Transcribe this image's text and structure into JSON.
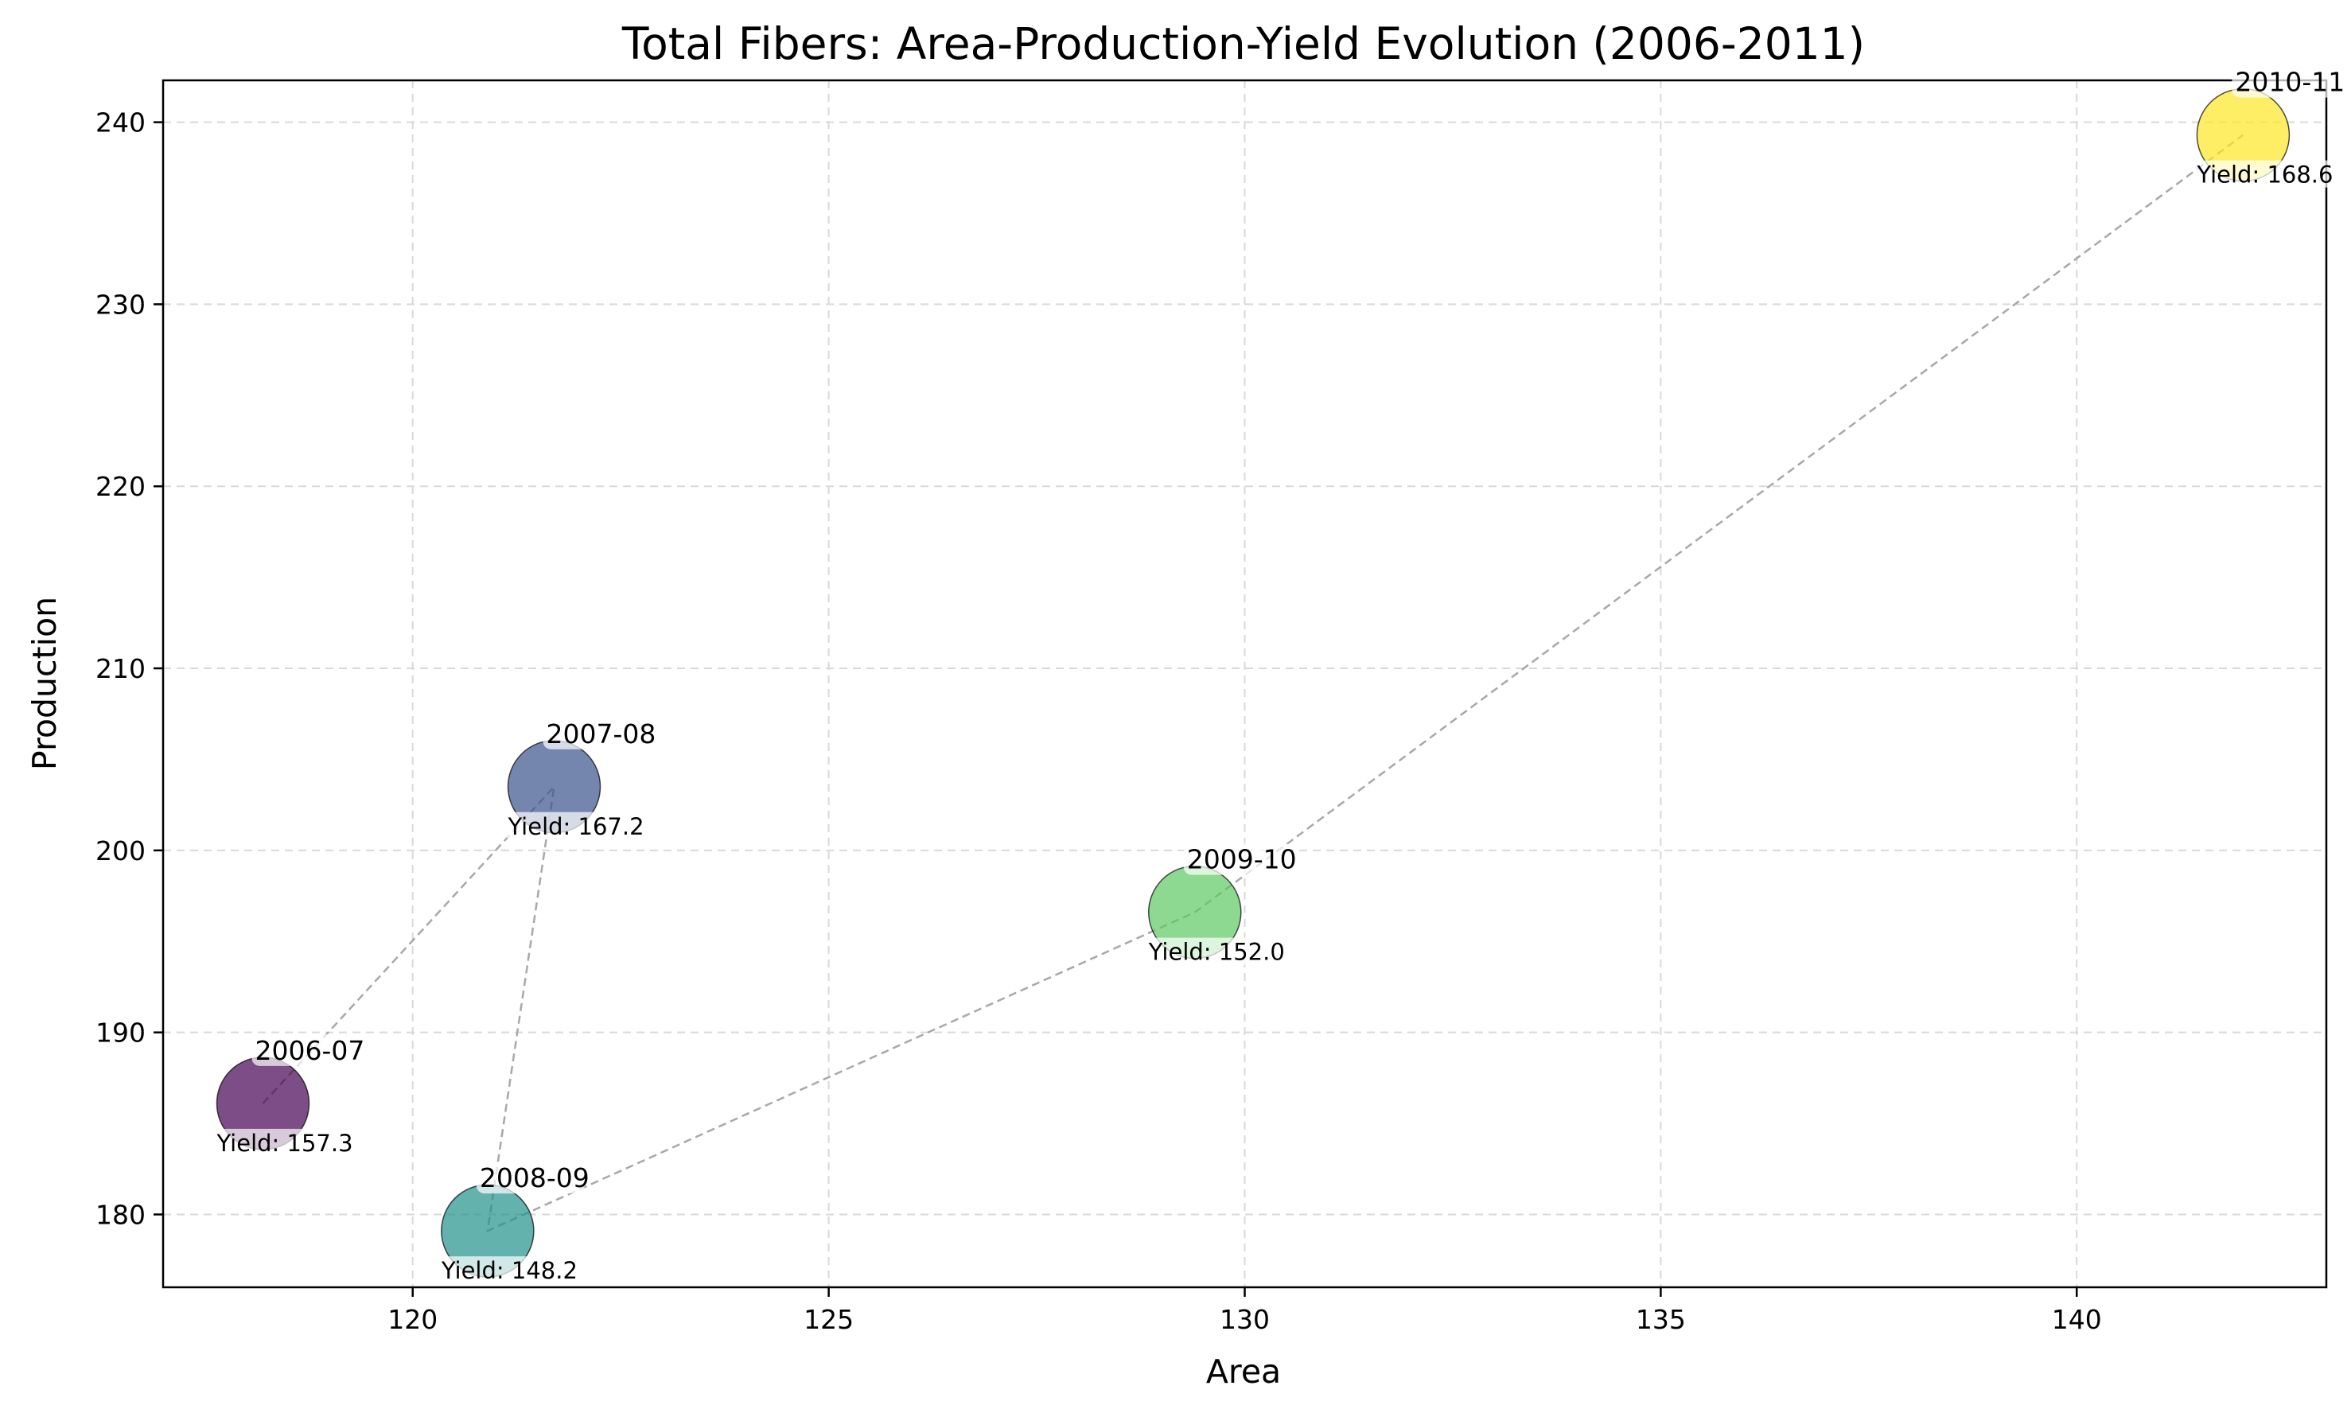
{
  "chart_data": {
    "type": "scatter",
    "title": "Total Fibers: Area-Production-Yield Evolution (2006-2011)",
    "xlabel": "Area",
    "ylabel": "Production",
    "xlim": [
      117.0,
      143.0
    ],
    "ylim": [
      176.0,
      242.3
    ],
    "xticks": [
      120,
      125,
      130,
      135,
      140
    ],
    "yticks": [
      180,
      190,
      200,
      210,
      220,
      230,
      240
    ],
    "grid": true,
    "connect_points": true,
    "points": [
      {
        "label": "2006-07",
        "x": 118.2,
        "y": 186.1,
        "yield_text": "Yield: 157.3",
        "color": "#440154"
      },
      {
        "label": "2007-08",
        "x": 121.7,
        "y": 203.5,
        "yield_text": "Yield: 167.2",
        "color": "#3b528b"
      },
      {
        "label": "2008-09",
        "x": 120.9,
        "y": 179.1,
        "yield_text": "Yield: 148.2",
        "color": "#21918c"
      },
      {
        "label": "2009-10",
        "x": 129.4,
        "y": 196.6,
        "yield_text": "Yield: 152.0",
        "color": "#5ec962"
      },
      {
        "label": "2010-11",
        "x": 142.0,
        "y": 239.3,
        "yield_text": "Yield: 168.6",
        "color": "#fde725"
      }
    ]
  }
}
